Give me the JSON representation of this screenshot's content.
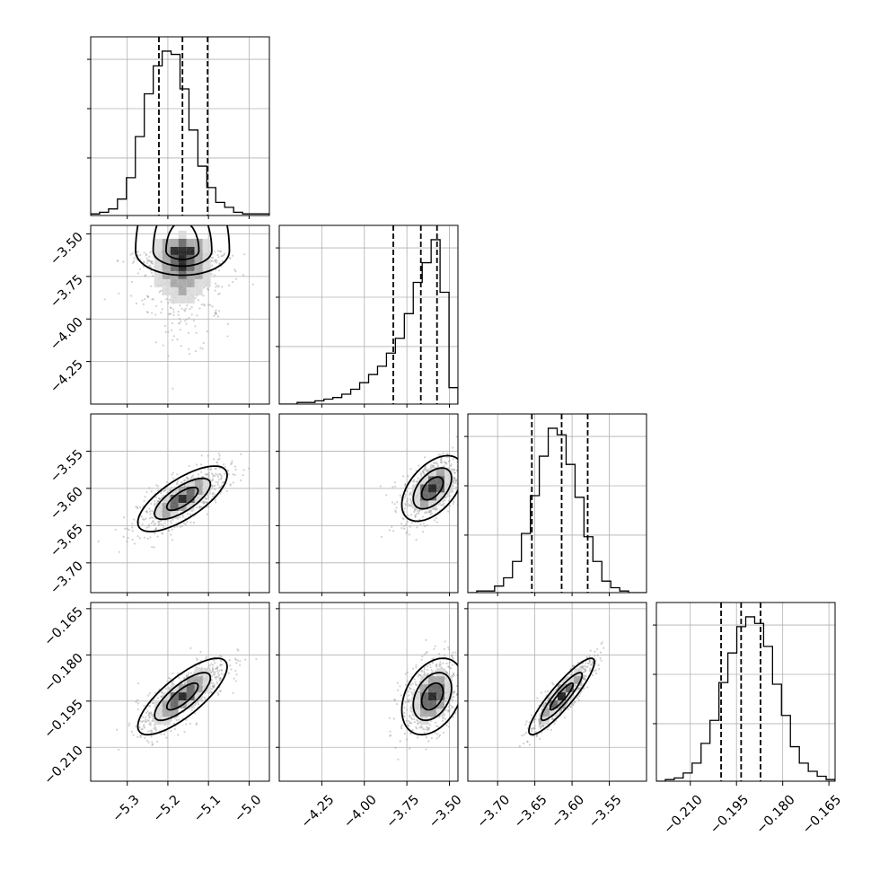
{
  "chart_data": {
    "type": "corner",
    "subtype": "posterior corner plot (marginal histograms + 2D density with contours and scatter)",
    "grid": true,
    "colors": {
      "line": "#000000",
      "scatter": "#9a9a9a",
      "grid": "#b0b0b0"
    },
    "parameters": [
      {
        "range": [
          -5.39,
          -4.95
        ],
        "ticks": [
          -5.3,
          -5.2,
          -5.1,
          -5.0
        ],
        "tick_labels": [
          "−5.3",
          "−5.2",
          "−5.1",
          "−5.0"
        ],
        "quantiles": [
          -5.222,
          -5.164,
          -5.102
        ],
        "hist_counts": [
          1,
          2,
          4,
          10,
          23,
          48,
          74,
          91,
          100,
          98,
          77,
          52,
          30,
          17,
          8,
          5,
          2,
          1,
          1,
          1
        ]
      },
      {
        "range": [
          -4.5,
          -3.45
        ],
        "ticks": [
          -4.25,
          -4.0,
          -3.75,
          -3.5
        ],
        "tick_labels": [
          "−4.25",
          "−4.00",
          "−3.75",
          "−3.50"
        ],
        "quantiles": [
          -3.83,
          -3.668,
          -3.573
        ],
        "hist_counts": [
          0,
          0,
          1,
          1,
          2,
          3,
          4,
          6,
          9,
          13,
          18,
          23,
          31,
          40,
          55,
          74,
          86,
          100,
          68,
          10
        ]
      },
      {
        "range": [
          -3.74,
          -3.5
        ],
        "ticks": [
          -3.7,
          -3.65,
          -3.6,
          -3.55
        ],
        "tick_labels": [
          "−3.70",
          "−3.65",
          "−3.60",
          "−3.55"
        ],
        "quantiles": [
          -3.654,
          -3.614,
          -3.579
        ],
        "hist_counts": [
          0,
          1,
          1,
          4,
          9,
          19,
          36,
          59,
          83,
          100,
          96,
          78,
          58,
          34,
          19,
          7,
          3,
          1,
          0,
          0
        ]
      },
      {
        "range": [
          -0.221,
          -0.163
        ],
        "ticks": [
          -0.21,
          -0.195,
          -0.18,
          -0.165
        ],
        "tick_labels": [
          "−0.210",
          "−0.195",
          "−0.180",
          "−0.165"
        ],
        "quantiles": [
          -0.2,
          -0.1935,
          -0.1872
        ],
        "hist_counts": [
          0,
          1,
          2,
          5,
          11,
          23,
          37,
          60,
          78,
          94,
          100,
          96,
          82,
          59,
          40,
          21,
          11,
          6,
          3,
          1
        ]
      }
    ],
    "pairs": [
      {
        "row": 1,
        "col": 0,
        "mean": [
          -5.164,
          -3.6
        ],
        "sd": [
          0.055,
          0.13
        ],
        "skew_dir": -1
      },
      {
        "row": 2,
        "col": 0,
        "mean": [
          -5.164,
          -3.614
        ],
        "sd": [
          0.055,
          0.022
        ],
        "corr": 0.72
      },
      {
        "row": 2,
        "col": 1,
        "mean": [
          -3.6,
          -3.6
        ],
        "sd": [
          0.09,
          0.022
        ],
        "corr": 0.5
      },
      {
        "row": 3,
        "col": 0,
        "mean": [
          -5.164,
          -0.1935
        ],
        "sd": [
          0.055,
          0.0062
        ],
        "corr": 0.78
      },
      {
        "row": 3,
        "col": 1,
        "mean": [
          -3.6,
          -0.1935
        ],
        "sd": [
          0.09,
          0.0062
        ],
        "corr": 0.35
      },
      {
        "row": 3,
        "col": 2,
        "mean": [
          -3.614,
          -0.1935
        ],
        "sd": [
          0.022,
          0.0062
        ],
        "corr": 0.9
      }
    ]
  }
}
